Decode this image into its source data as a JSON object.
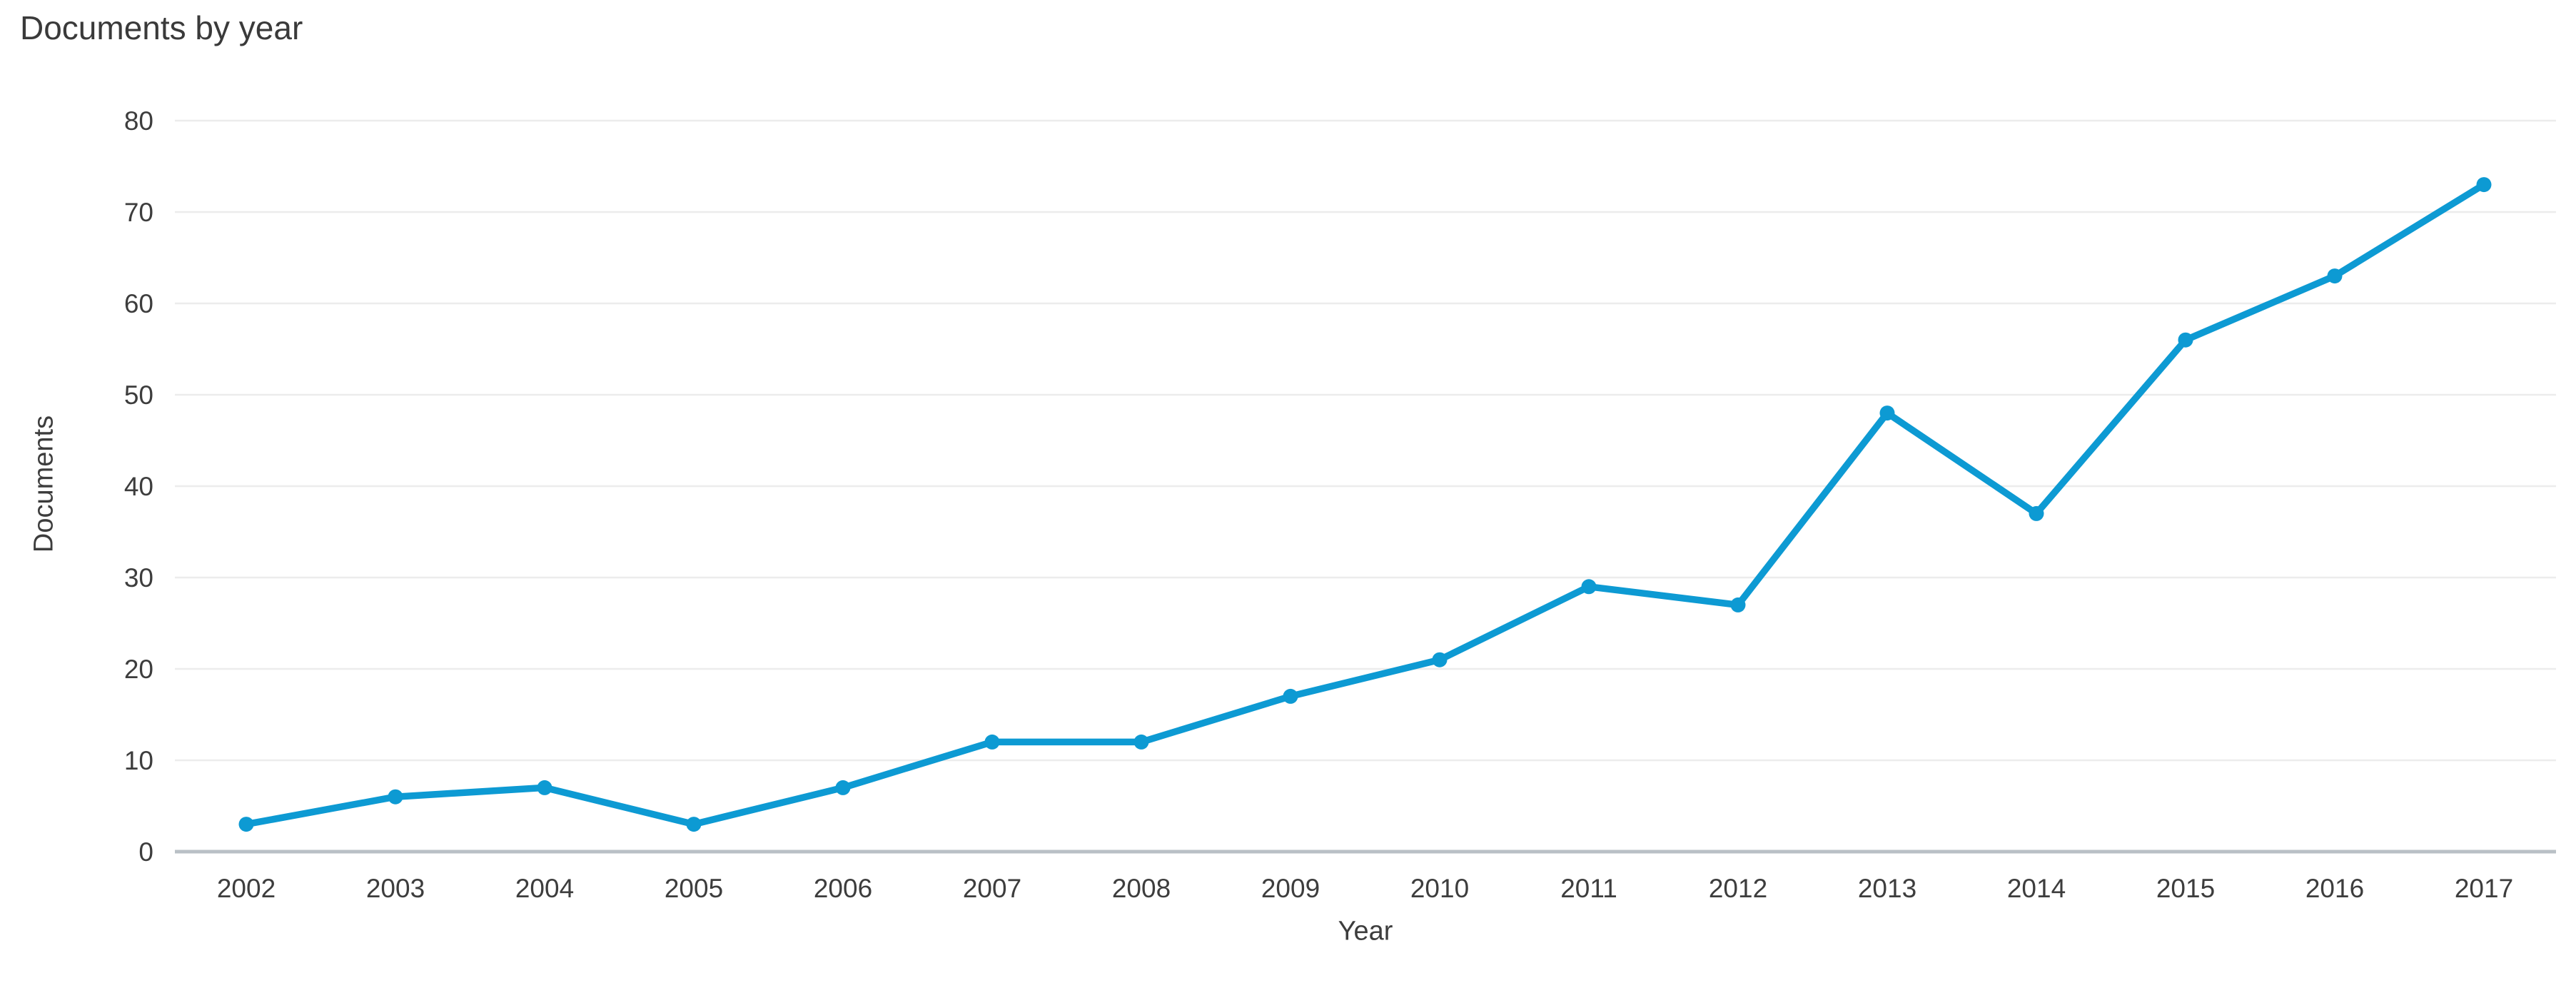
{
  "page": {
    "background_color": "#ffffff"
  },
  "chart_data": {
    "type": "line",
    "title": "Documents by year",
    "xlabel": "Year",
    "ylabel": "Documents",
    "categories": [
      "2002",
      "2003",
      "2004",
      "2005",
      "2006",
      "2007",
      "2008",
      "2009",
      "2010",
      "2011",
      "2012",
      "2013",
      "2014",
      "2015",
      "2016",
      "2017"
    ],
    "series": [
      {
        "name": "Documents",
        "values": [
          3,
          6,
          7,
          3,
          7,
          12,
          12,
          17,
          21,
          29,
          27,
          48,
          37,
          56,
          63,
          73
        ]
      }
    ],
    "ylim": [
      0,
      80
    ],
    "yticks": [
      0,
      10,
      20,
      30,
      40,
      50,
      60,
      70,
      80
    ],
    "grid": "horizontal",
    "legend": "none",
    "line_color": "#0d9ad3",
    "marker_color": "#0d9ad3",
    "grid_color": "#ececec",
    "axis_line_color": "#b9c0c6",
    "text_color": "#3d3d3d",
    "title_color": "#3a3a3a"
  }
}
